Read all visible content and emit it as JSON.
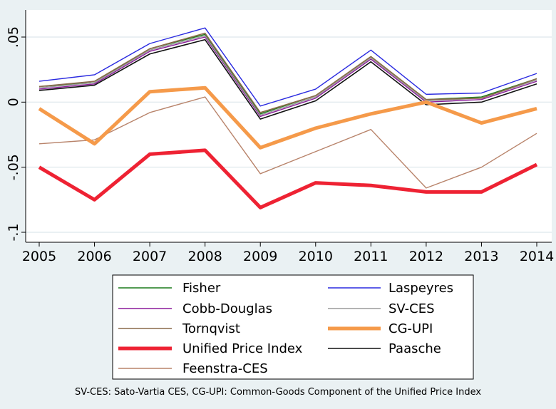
{
  "chart_data": {
    "type": "line",
    "x": [
      2005,
      2006,
      2007,
      2008,
      2009,
      2010,
      2011,
      2012,
      2013,
      2014
    ],
    "xlim": [
      2005,
      2014
    ],
    "ylim": [
      -0.1,
      0.05
    ],
    "xticks": [
      "2005",
      "2006",
      "2007",
      "2008",
      "2009",
      "2010",
      "2011",
      "2012",
      "2013",
      "2014"
    ],
    "yticks": [
      {
        "value": 0.05,
        "label": ".05"
      },
      {
        "value": 0,
        "label": "0"
      },
      {
        "value": -0.05,
        "label": "-.05"
      },
      {
        "value": -0.1,
        "label": "-.1"
      }
    ],
    "grid": "horizontal",
    "legend_placement": "bottom",
    "note": "SV-CES: Sato-Vartia CES, CG-UPI: Common-Goods Component of the Unified Price Index",
    "series": [
      {
        "name": "Fisher",
        "color": "#1a7a1a",
        "width": 1.4,
        "values": [
          0.012,
          0.015,
          0.041,
          0.052,
          -0.009,
          0.005,
          0.035,
          0.002,
          0.004,
          0.018
        ]
      },
      {
        "name": "Laspeyres",
        "color": "#2a2ae0",
        "width": 1.4,
        "values": [
          0.016,
          0.021,
          0.045,
          0.057,
          -0.003,
          0.01,
          0.04,
          0.006,
          0.007,
          0.022
        ]
      },
      {
        "name": "Cobb-Douglas",
        "color": "#8b1a9a",
        "width": 1.4,
        "values": [
          0.01,
          0.014,
          0.039,
          0.05,
          -0.011,
          0.003,
          0.033,
          0.0,
          0.002,
          0.016
        ]
      },
      {
        "name": "SV-CES",
        "color": "#9a9a9a",
        "width": 1.4,
        "values": [
          0.011,
          0.015,
          0.04,
          0.051,
          -0.01,
          0.004,
          0.034,
          0.001,
          0.003,
          0.017
        ]
      },
      {
        "name": "Tornqvist",
        "color": "#8a6a4a",
        "width": 1.6,
        "values": [
          0.012,
          0.016,
          0.041,
          0.053,
          -0.008,
          0.005,
          0.035,
          0.002,
          0.003,
          0.018
        ]
      },
      {
        "name": "CG-UPI",
        "color": "#f59a4a",
        "width": 5,
        "values": [
          -0.005,
          -0.032,
          0.008,
          0.011,
          -0.035,
          -0.02,
          -0.009,
          0.0,
          -0.016,
          -0.005
        ]
      },
      {
        "name": "Unified Price Index",
        "color": "#ee2233",
        "width": 5,
        "values": [
          -0.05,
          -0.075,
          -0.04,
          -0.037,
          -0.081,
          -0.062,
          -0.064,
          -0.069,
          -0.069,
          -0.048
        ]
      },
      {
        "name": "Paasche",
        "color": "#111111",
        "width": 1.6,
        "values": [
          0.009,
          0.013,
          0.037,
          0.048,
          -0.013,
          0.001,
          0.031,
          -0.002,
          0.0,
          0.014
        ]
      },
      {
        "name": "Feenstra-CES",
        "color": "#b8836a",
        "width": 1.4,
        "values": [
          -0.032,
          -0.029,
          -0.008,
          0.004,
          -0.055,
          -0.038,
          -0.021,
          -0.066,
          -0.05,
          -0.024
        ]
      }
    ]
  }
}
